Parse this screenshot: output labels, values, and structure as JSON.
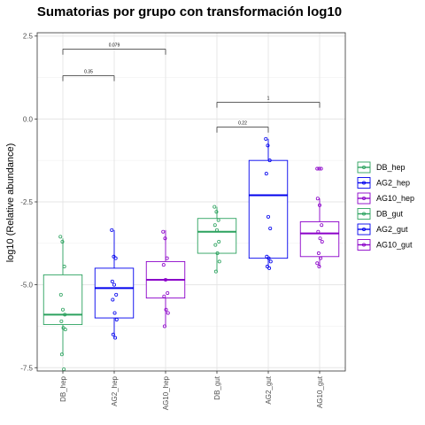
{
  "chart_data": {
    "type": "box",
    "title": "Sumatorias por grupo con transformación log10",
    "xlabel": "",
    "ylabel": "log10 (Relative abundance)",
    "ylim": [
      -7.6,
      2.6
    ],
    "yticks": [
      2.5,
      0.0,
      -2.5,
      -5.0,
      -7.5
    ],
    "ytick_labels": [
      "2.5",
      "0.0",
      "-2.5",
      "-5.0",
      "-7.5"
    ],
    "grid": true,
    "legend_position": "right",
    "colors": {
      "green": "#2ca25f",
      "blue": "#0000ee",
      "purple": "#8b00c9"
    },
    "series": [
      {
        "name": "DB_hep",
        "color": "#2ca25f",
        "q1": -6.2,
        "median": -5.9,
        "q3": -4.7,
        "whisker_low": -7.1,
        "whisker_high": -3.6,
        "points": [
          -3.55,
          -3.7,
          -4.45,
          -5.3,
          -5.75,
          -5.9,
          -6.1,
          -6.3,
          -6.35,
          -7.1,
          -7.55
        ]
      },
      {
        "name": "AG2_hep",
        "color": "#0000ee",
        "q1": -6.0,
        "median": -5.1,
        "q3": -4.5,
        "whisker_low": -6.6,
        "whisker_high": -3.35,
        "points": [
          -3.35,
          -4.15,
          -4.2,
          -4.9,
          -5.0,
          -5.3,
          -5.45,
          -5.85,
          -6.05,
          -6.5,
          -6.6
        ]
      },
      {
        "name": "AG10_hep",
        "color": "#8b00c9",
        "q1": -5.4,
        "median": -4.85,
        "q3": -4.3,
        "whisker_low": -6.25,
        "whisker_high": -3.35,
        "points": [
          -3.4,
          -3.6,
          -4.2,
          -4.4,
          -4.85,
          -5.25,
          -5.35,
          -5.75,
          -5.85,
          -6.25
        ]
      },
      {
        "name": "DB_gut",
        "color": "#2ca25f",
        "q1": -4.05,
        "median": -3.4,
        "q3": -3.0,
        "whisker_low": -4.6,
        "whisker_high": -2.65,
        "points": [
          -2.65,
          -2.8,
          -3.05,
          -3.2,
          -3.35,
          -3.7,
          -3.8,
          -4.05,
          -4.3,
          -4.6
        ]
      },
      {
        "name": "AG2_gut",
        "color": "#0000ee",
        "q1": -4.2,
        "median": -2.3,
        "q3": -1.25,
        "whisker_low": -4.5,
        "whisker_high": -0.6,
        "points": [
          -0.6,
          -0.8,
          -1.25,
          -1.65,
          -2.95,
          -3.3,
          -4.15,
          -4.2,
          -4.3,
          -4.45,
          -4.5
        ]
      },
      {
        "name": "AG10_gut",
        "color": "#8b00c9",
        "q1": -4.15,
        "median": -3.45,
        "q3": -3.1,
        "whisker_low": -4.45,
        "whisker_high": -2.4,
        "points": [
          -1.5,
          -1.5,
          -1.5,
          -2.4,
          -2.6,
          -3.2,
          -3.4,
          -3.6,
          -3.7,
          -4.05,
          -4.2,
          -4.35,
          -4.45
        ]
      }
    ],
    "comparisons": [
      {
        "from": "DB_hep",
        "to": "AG2_hep",
        "y": 1.3,
        "label": "0.35"
      },
      {
        "from": "DB_hep",
        "to": "AG10_hep",
        "y": 2.1,
        "label": "0.079"
      },
      {
        "from": "DB_gut",
        "to": "AG2_gut",
        "y": -0.25,
        "label": "0.22"
      },
      {
        "from": "DB_gut",
        "to": "AG10_gut",
        "y": 0.5,
        "label": "1"
      }
    ]
  }
}
